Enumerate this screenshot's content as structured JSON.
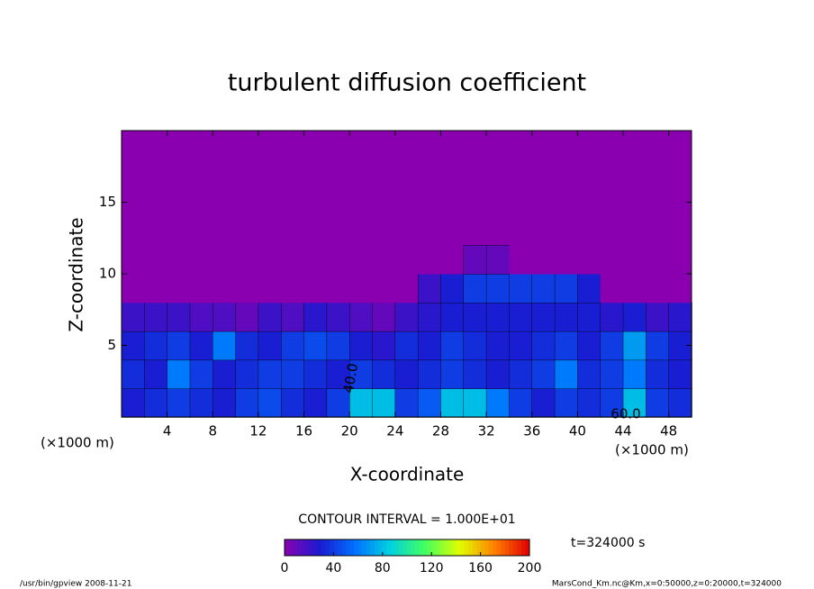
{
  "chart_data": {
    "type": "heatmap",
    "title": "turbulent diffusion coefficient",
    "x_label": "X-coordinate",
    "y_label": "Z-coordinate",
    "x_unit_labels": [
      "(×1000 m)",
      "(×1000 m)"
    ],
    "xlim": [
      0,
      50
    ],
    "ylim": [
      0,
      20
    ],
    "xticks": [
      4,
      8,
      12,
      16,
      20,
      24,
      28,
      32,
      36,
      40,
      44,
      48
    ],
    "yticks": [
      5,
      10,
      15
    ],
    "x": [
      1,
      3,
      5,
      7,
      9,
      11,
      13,
      15,
      17,
      19,
      21,
      23,
      25,
      27,
      29,
      31,
      33,
      35,
      37,
      39,
      41,
      43,
      45,
      47,
      49
    ],
    "z": [
      1,
      3,
      5,
      7,
      9,
      11
    ],
    "values": [
      [
        30,
        35,
        40,
        35,
        30,
        40,
        45,
        35,
        30,
        40,
        80,
        80,
        40,
        50,
        80,
        80,
        60,
        40,
        30,
        40,
        35,
        40,
        80,
        40,
        35
      ],
      [
        35,
        30,
        60,
        40,
        30,
        35,
        40,
        40,
        35,
        30,
        40,
        35,
        30,
        35,
        40,
        35,
        30,
        35,
        40,
        60,
        35,
        40,
        60,
        35,
        30
      ],
      [
        30,
        35,
        40,
        30,
        60,
        35,
        30,
        40,
        45,
        40,
        30,
        25,
        35,
        30,
        40,
        35,
        30,
        30,
        35,
        40,
        30,
        40,
        70,
        40,
        30
      ],
      [
        20,
        20,
        20,
        15,
        15,
        10,
        20,
        15,
        25,
        20,
        15,
        10,
        20,
        25,
        30,
        30,
        30,
        30,
        30,
        30,
        30,
        25,
        30,
        20,
        25
      ],
      [
        0,
        0,
        0,
        0,
        0,
        0,
        0,
        0,
        0,
        0,
        0,
        0,
        0,
        20,
        30,
        40,
        40,
        40,
        40,
        40,
        30,
        0,
        0,
        0,
        0
      ],
      [
        0,
        0,
        0,
        0,
        0,
        0,
        0,
        0,
        0,
        0,
        0,
        0,
        0,
        0,
        0,
        10,
        10,
        0,
        0,
        0,
        0,
        0,
        0,
        0,
        0
      ]
    ],
    "annotations": [
      "40.0",
      "60.0"
    ],
    "colormap": [
      "#8a00b0",
      "#1a1ad0",
      "#0070ff",
      "#00d0e0",
      "#40ff60",
      "#e0ff00",
      "#ff8000",
      "#e00000"
    ],
    "clim": [
      0,
      200
    ],
    "colorbar_ticks": [
      0,
      40,
      80,
      120,
      160,
      200
    ],
    "contour_interval_label": "CONTOUR INTERVAL = 1.000E+01",
    "time_label": "t=324000 s",
    "footer_left": "/usr/bin/gpview   2008-11-21",
    "footer_right": "MarsCond_Km.nc@Km,x=0:50000,z=0:20000,t=324000"
  }
}
